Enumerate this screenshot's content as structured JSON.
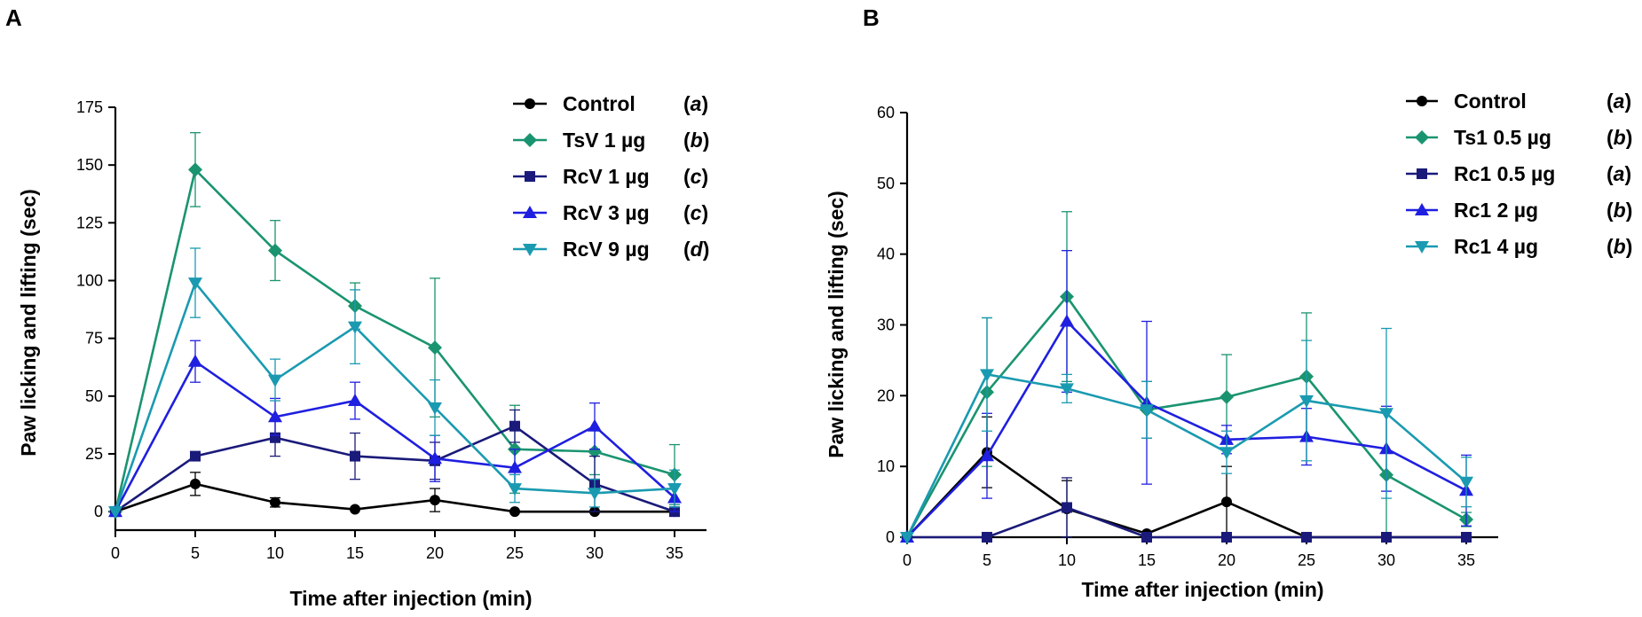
{
  "panel_labels": [
    "A",
    "B"
  ],
  "chart_data": [
    {
      "type": "line",
      "panel": "A",
      "xlabel": "Time after injection (min)",
      "ylabel": "Paw licking and lifting (sec)",
      "x": [
        0,
        5,
        10,
        15,
        20,
        25,
        30,
        35
      ],
      "xticks": [
        "0",
        "5",
        "10",
        "15",
        "20",
        "25",
        "30",
        "35"
      ],
      "yticks": [
        "0",
        "25",
        "50",
        "75",
        "100",
        "125",
        "150",
        "175"
      ],
      "ylim": [
        -8,
        175
      ],
      "xlim": [
        0,
        37
      ],
      "series": [
        {
          "name": "Control",
          "sig": "a",
          "color": "#000000",
          "marker": "circle",
          "values": [
            0,
            12,
            4,
            1,
            5,
            0,
            0,
            0
          ],
          "errors": [
            0,
            5,
            2,
            0,
            5,
            0,
            0,
            0
          ]
        },
        {
          "name": "TsV 1 µg",
          "sig": "b",
          "color": "#1a9470",
          "marker": "diamond",
          "values": [
            0,
            148,
            113,
            89,
            71,
            27,
            26,
            16
          ],
          "errors": [
            0,
            16,
            13,
            10,
            30,
            19,
            10,
            13
          ]
        },
        {
          "name": "RcV 1 µg",
          "sig": "c",
          "color": "#1a1a7a",
          "marker": "square",
          "values": [
            0,
            24,
            32,
            24,
            22,
            37,
            12,
            0
          ],
          "errors": [
            0,
            0,
            8,
            10,
            8,
            7,
            12,
            0
          ]
        },
        {
          "name": "RcV 3 µg",
          "sig": "c",
          "color": "#1f1fe0",
          "marker": "triangle-up",
          "values": [
            0,
            65,
            41,
            48,
            23,
            19,
            37,
            6
          ],
          "errors": [
            0,
            9,
            8,
            8,
            10,
            8,
            10,
            6
          ]
        },
        {
          "name": "RcV 9 µg",
          "sig": "d",
          "color": "#1a9ab0",
          "marker": "triangle-down",
          "values": [
            0,
            99,
            57,
            80,
            45,
            10,
            8,
            10
          ],
          "errors": [
            0,
            15,
            9,
            16,
            12,
            6,
            6,
            8
          ]
        }
      ]
    },
    {
      "type": "line",
      "panel": "B",
      "xlabel": "Time after injection (min)",
      "ylabel": "Paw licking and lifting (sec)",
      "x": [
        0,
        5,
        10,
        15,
        20,
        25,
        30,
        35
      ],
      "xticks": [
        "0",
        "5",
        "10",
        "15",
        "20",
        "25",
        "30",
        "35"
      ],
      "yticks": [
        "0",
        "10",
        "20",
        "30",
        "40",
        "50",
        "60"
      ],
      "ylim": [
        0,
        60
      ],
      "xlim": [
        0,
        37
      ],
      "series": [
        {
          "name": "Control",
          "sig": "a",
          "color": "#000000",
          "marker": "circle",
          "values": [
            0,
            12,
            4,
            0.5,
            5,
            0,
            0,
            0
          ],
          "errors": [
            0,
            5,
            4,
            0,
            5,
            0,
            0,
            0
          ]
        },
        {
          "name": "Ts1 0.5 µg",
          "sig": "b",
          "color": "#1a9470",
          "marker": "diamond",
          "values": [
            0,
            20.5,
            34,
            18,
            19.8,
            22.7,
            8.8,
            2.5
          ],
          "errors": [
            0,
            10.5,
            12,
            4,
            6,
            9,
            9,
            1
          ]
        },
        {
          "name": "Rc1 0.5 µg",
          "sig": "a",
          "color": "#1a1a7a",
          "marker": "square",
          "values": [
            0,
            0,
            4.2,
            0,
            0,
            0,
            0,
            0
          ],
          "errors": [
            0,
            0,
            4.2,
            0,
            0,
            0,
            0,
            0
          ]
        },
        {
          "name": "Rc1 2 µg",
          "sig": "b",
          "color": "#1f1fe0",
          "marker": "triangle-up",
          "values": [
            0,
            11.5,
            30.5,
            19,
            13.8,
            14.2,
            12.5,
            6.6
          ],
          "errors": [
            0,
            6,
            10,
            11.5,
            2,
            4,
            6,
            5
          ]
        },
        {
          "name": "Rc1 4 µg",
          "sig": "b",
          "color": "#1a9ab0",
          "marker": "triangle-down",
          "values": [
            0,
            23,
            21,
            18,
            12,
            19.3,
            17.5,
            7.8
          ],
          "errors": [
            0,
            8,
            2,
            4,
            3,
            8.5,
            12,
            3.5
          ]
        }
      ]
    }
  ]
}
